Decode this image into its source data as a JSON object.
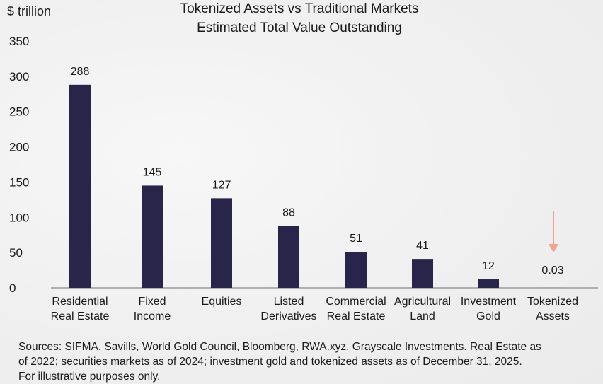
{
  "chart_data": {
    "type": "bar",
    "title": "Tokenized Assets vs Traditional Markets",
    "subtitle": "Estimated Total Value Outstanding",
    "ylabel": "$ trillion",
    "xlabel": "",
    "ylim": [
      0,
      350
    ],
    "yticks": [
      "0",
      "50",
      "100",
      "150",
      "200",
      "250",
      "300",
      "350"
    ],
    "categories": [
      [
        "Residential",
        "Real Estate"
      ],
      [
        "Fixed",
        "Income"
      ],
      [
        "Equities"
      ],
      [
        "Listed",
        "Derivatives"
      ],
      [
        "Commercial",
        "Real Estate"
      ],
      [
        "Agricultural",
        "Land"
      ],
      [
        "Investment",
        "Gold"
      ],
      [
        "Tokenized",
        "Assets"
      ]
    ],
    "values": [
      288,
      145,
      127,
      88,
      51,
      41,
      12,
      0.03
    ],
    "value_labels": [
      "288",
      "145",
      "127",
      "88",
      "51",
      "41",
      "12",
      "0.03"
    ],
    "grid": false,
    "legend": "none",
    "annotation": "arrow pointing down at Tokenized Assets"
  },
  "colors": {
    "bar": "#28244a",
    "axis": "#9a9a9a",
    "arrow": "#f0a58c"
  },
  "footnote": {
    "line1": "Sources: SIFMA, Savills, World Gold Council, Bloomberg, RWA.xyz, Grayscale Investments. Real Estate as",
    "line2": "of 2022; securities markets as of 2024; investment gold and tokenized assets as of December 31, 2025.",
    "line3": "For illustrative purposes only."
  }
}
